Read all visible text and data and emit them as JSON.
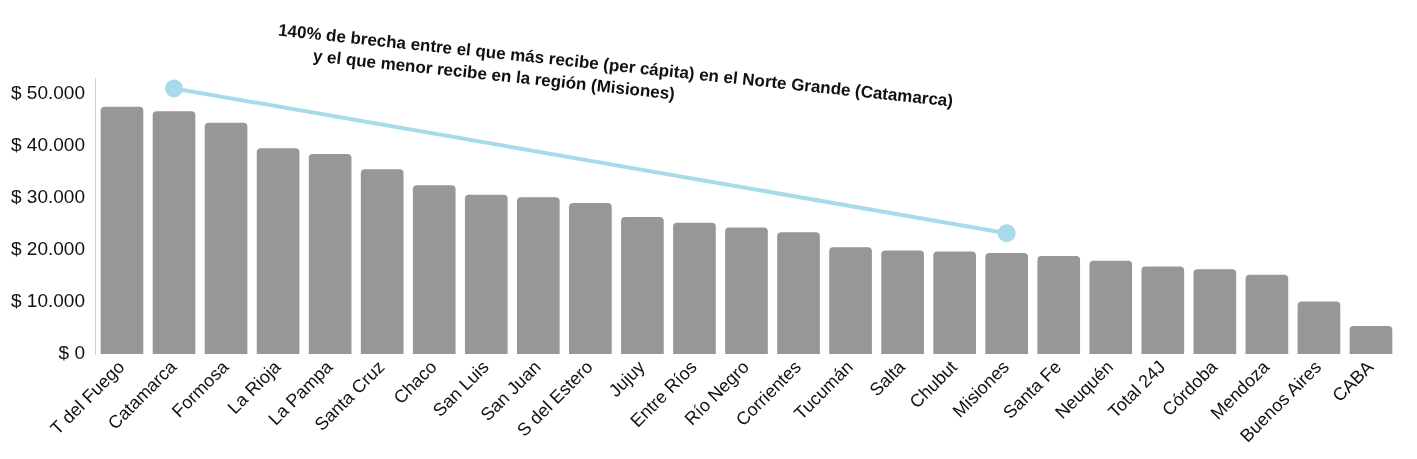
{
  "chart_data": {
    "type": "bar",
    "categories": [
      "T del Fuego",
      "Catamarca",
      "Formosa",
      "La Rioja",
      "La Pampa",
      "Santa Cruz",
      "Chaco",
      "San Luis",
      "San Juan",
      "S del Estero",
      "Jujuy",
      "Entre Ríos",
      "Río Negro",
      "Corrientes",
      "Tucumán",
      "Salta",
      "Chubut",
      "Misiones",
      "Santa Fe",
      "Neuquén",
      "Total 24J",
      "Córdoba",
      "Mendoza",
      "Buenos Aires",
      "CABA"
    ],
    "series": [
      {
        "color": "#979797",
        "values": [
          47500,
          46600,
          44400,
          39500,
          38400,
          35500,
          32400,
          30600,
          30100,
          29000,
          26300,
          25200,
          24300,
          23400,
          20500,
          19900,
          19700,
          19400,
          18800,
          17900,
          16800,
          16300,
          15200,
          10100,
          5400
        ]
      },
      {
        "type": "line",
        "color": "#a8dbe9",
        "marker": "circle",
        "x": [
          "Catamarca",
          "Misiones"
        ],
        "values": [
          51000,
          23200
        ]
      }
    ],
    "ylim": [
      0,
      53000
    ],
    "yticks": [
      {
        "value": 0,
        "label": "$ 0"
      },
      {
        "value": 10000,
        "label": "$ 10.000"
      },
      {
        "value": 20000,
        "label": "$ 20.000"
      },
      {
        "value": 30000,
        "label": "$ 30.000"
      },
      {
        "value": 40000,
        "label": "$ 40.000"
      },
      {
        "value": 50000,
        "label": "$ 50.000"
      }
    ],
    "grid": false,
    "legend": false,
    "annotations": [
      "140% de brecha entre el que más recibe (per cápita) en el Norte Grande (Catamarca)\ny el que menor recibe en la región (Misiones)"
    ]
  }
}
